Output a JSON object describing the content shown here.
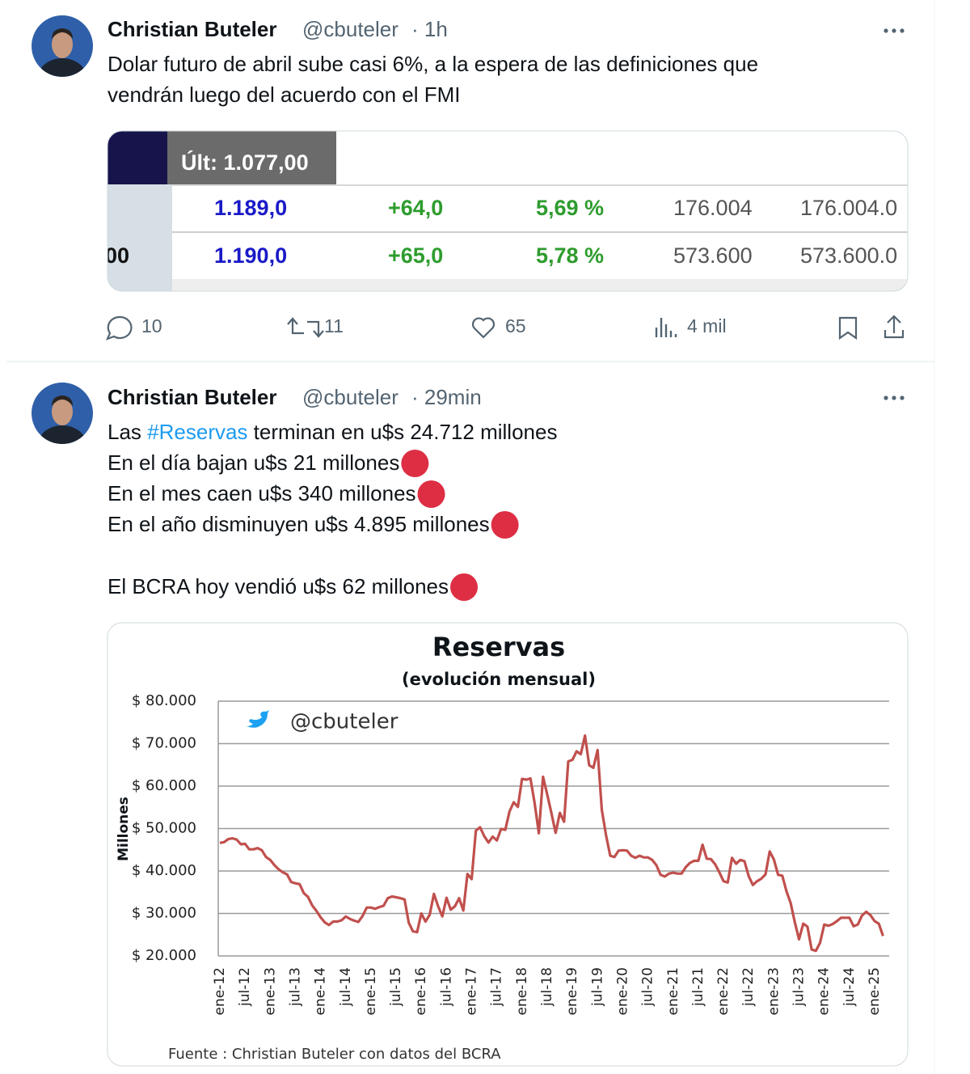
{
  "tweets": [
    {
      "name": "Christian Buteler",
      "handle": "@cbuteler",
      "time": "· 1h",
      "text": [
        "Dolar futuro de abril sube casi 6%, a la espera de las definiciones que",
        "vendrán luego del acuerdo con el FMI"
      ],
      "table": {
        "header": "Últ: 1.077,00",
        "rows": [
          {
            "values": [
              "1.189,0",
              "+64,0",
              "5,69 %",
              "176.004",
              "176.004.0"
            ]
          },
          {
            "code": "00",
            "values": [
              "1.190,0",
              "+65,0",
              "5,78 %",
              "573.600",
              "573.600.0"
            ]
          }
        ]
      },
      "stats": {
        "replies": 10,
        "retweets": 11,
        "likes": 65,
        "views": "4 mil"
      }
    },
    {
      "name": "Christian Buteler",
      "handle": "@cbuteler",
      "time": "· 29min",
      "text_first": [
        "Las ",
        "#Reservas",
        " terminan en u$s 24.712 millones"
      ],
      "text": [
        "En el día bajan u$s 21 millones",
        "En el mes caen u$s 340 millones",
        "En el año disminuyen u$s 4.895 millones",
        "El BCRA hoy vendió u$s 62 millones"
      ]
    }
  ],
  "chart_data": {
    "type": "line",
    "title": "Reservas",
    "subtitle": "(evolución mensual)",
    "y_label": "Millones",
    "watermark": "@cbuteler",
    "source": "Fuente : Christian Buteler con datos del BCRA",
    "color": "#c0504d",
    "grid": true,
    "ylim": [
      20000,
      80000
    ],
    "yticks": [
      {
        "value": 20000,
        "label": "$ 20.000"
      },
      {
        "value": 30000,
        "label": "$ 30.000"
      },
      {
        "value": 40000,
        "label": "$ 40.000"
      },
      {
        "value": 50000,
        "label": "$ 50.000"
      },
      {
        "value": 60000,
        "label": "$ 60.000"
      },
      {
        "value": 70000,
        "label": "$ 70.000"
      },
      {
        "value": 80000,
        "label": "$ 80.000"
      }
    ],
    "categories": [
      "ene-12",
      null,
      null,
      null,
      null,
      null,
      "jul-12",
      null,
      null,
      null,
      null,
      null,
      "ene-13",
      null,
      null,
      null,
      null,
      null,
      "jul-13",
      null,
      null,
      null,
      null,
      null,
      "ene-14",
      null,
      null,
      null,
      null,
      null,
      "jul-14",
      null,
      null,
      null,
      null,
      null,
      "ene-15",
      null,
      null,
      null,
      null,
      null,
      "jul-15",
      null,
      null,
      null,
      null,
      null,
      "ene-16",
      null,
      null,
      null,
      null,
      null,
      "jul-16",
      null,
      null,
      null,
      null,
      null,
      "ene-17",
      null,
      null,
      null,
      null,
      null,
      "jul-17",
      null,
      null,
      null,
      null,
      null,
      "ene-18",
      null,
      null,
      null,
      null,
      null,
      "jul-18",
      null,
      null,
      null,
      null,
      null,
      "ene-19",
      null,
      null,
      null,
      null,
      null,
      "jul-19",
      null,
      null,
      null,
      null,
      null,
      "ene-20",
      null,
      null,
      null,
      null,
      null,
      "jul-20",
      null,
      null,
      null,
      null,
      null,
      "ene-21",
      null,
      null,
      null,
      null,
      null,
      "jul-21",
      null,
      null,
      null,
      null,
      null,
      "ene-22",
      null,
      null,
      null,
      null,
      null,
      "jul-22",
      null,
      null,
      null,
      null,
      null,
      "ene-23",
      null,
      null,
      null,
      null,
      null,
      "jul-23",
      null,
      null,
      null,
      null,
      null,
      "ene-24",
      null,
      null,
      null,
      null,
      null,
      "jul-24",
      null,
      null,
      null,
      null,
      null,
      "ene-25",
      null,
      null
    ],
    "values": [
      46600,
      46800,
      47500,
      47700,
      47400,
      46300,
      46400,
      45100,
      45100,
      45400,
      44900,
      43300,
      42600,
      41400,
      40400,
      39700,
      39200,
      37400,
      37100,
      36900,
      34800,
      33900,
      31900,
      30600,
      29100,
      27900,
      27300,
      28100,
      28100,
      28400,
      29300,
      28700,
      28300,
      28000,
      29400,
      31400,
      31400,
      31100,
      31500,
      31800,
      33600,
      34000,
      33800,
      33600,
      33300,
      27800,
      25800,
      25600,
      30000,
      28100,
      29700,
      34600,
      31700,
      29300,
      33700,
      30900,
      31700,
      33600,
      30700,
      39300,
      38100,
      49500,
      50300,
      48200,
      46700,
      48100,
      47200,
      49900,
      49700,
      54000,
      56200,
      55100,
      61700,
      61500,
      61800,
      56000,
      48900,
      62200,
      58000,
      53600,
      49000,
      53700,
      51600,
      65800,
      66200,
      68200,
      67500,
      71900,
      64900,
      64300,
      68500,
      54400,
      48500,
      43600,
      43300,
      44800,
      44900,
      44800,
      43600,
      43100,
      43600,
      43200,
      43200,
      42600,
      41400,
      39100,
      38700,
      39400,
      39600,
      39400,
      39400,
      40900,
      41900,
      42400,
      42400,
      46200,
      42900,
      42800,
      41600,
      39700,
      37600,
      37300,
      43100,
      41700,
      42600,
      42300,
      38800,
      36700,
      37600,
      38200,
      39200,
      44600,
      42700,
      39100,
      38900,
      35200,
      32400,
      27900,
      23900,
      27600,
      26900,
      21500,
      21200,
      23100,
      27400,
      27100,
      27500,
      28200,
      29000,
      29000,
      29000,
      27000,
      27400,
      29500,
      30400,
      29600,
      28200,
      27600,
      24700
    ]
  }
}
